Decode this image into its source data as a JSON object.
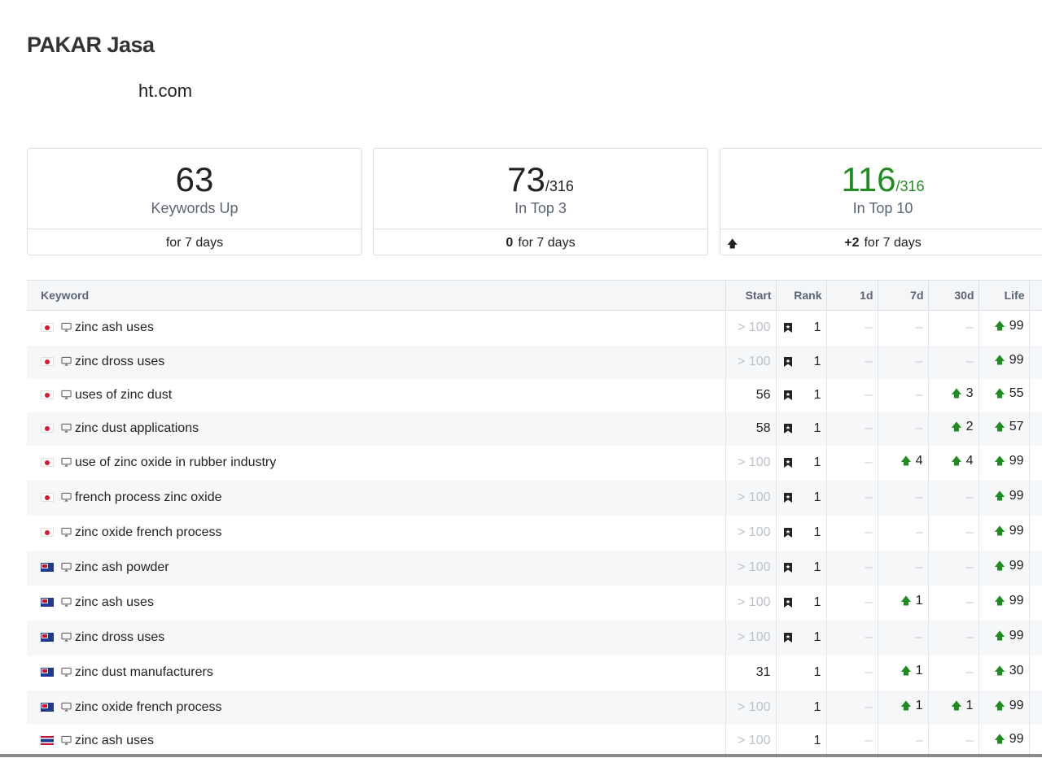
{
  "header": {
    "title": "PAKAR Jasa",
    "domain": "ht.com"
  },
  "cards": [
    {
      "value": "63",
      "label": "Keywords Up",
      "foot_prefix": "",
      "foot_text": "for 7 days"
    },
    {
      "value": "73",
      "denominator": "/316",
      "label": "In Top 3",
      "foot_prefix": "0",
      "foot_text": "for 7 days"
    },
    {
      "value": "116",
      "denominator": "/316",
      "label": "In Top 10",
      "foot_prefix": "+2",
      "foot_text": "for 7 days",
      "accent": "#1e8c1e"
    }
  ],
  "table": {
    "headers": {
      "keyword": "Keyword",
      "start": "Start",
      "rank": "Rank",
      "d1": "1d",
      "d7": "7d",
      "d30": "30d",
      "life": "Life"
    },
    "rows": [
      {
        "flag": "jp",
        "keyword": "zinc ash uses",
        "start": "> 100",
        "rank": "1",
        "pinned": true,
        "d1": "–",
        "d7": "–",
        "d30": "–",
        "life": "99"
      },
      {
        "flag": "jp",
        "keyword": "zinc dross uses",
        "start": "> 100",
        "rank": "1",
        "pinned": true,
        "d1": "–",
        "d7": "–",
        "d30": "–",
        "life": "99"
      },
      {
        "flag": "jp",
        "keyword": "uses of zinc dust",
        "start": "56",
        "rank": "1",
        "pinned": true,
        "d1": "–",
        "d7": "–",
        "d30": "3",
        "life": "55"
      },
      {
        "flag": "jp",
        "keyword": "zinc dust applications",
        "start": "58",
        "rank": "1",
        "pinned": true,
        "d1": "–",
        "d7": "–",
        "d30": "2",
        "life": "57"
      },
      {
        "flag": "jp",
        "keyword": "use of zinc oxide in rubber industry",
        "start": "> 100",
        "rank": "1",
        "pinned": true,
        "d1": "–",
        "d7": "4",
        "d30": "4",
        "life": "99"
      },
      {
        "flag": "jp",
        "keyword": "french process zinc oxide",
        "start": "> 100",
        "rank": "1",
        "pinned": true,
        "d1": "–",
        "d7": "–",
        "d30": "–",
        "life": "99"
      },
      {
        "flag": "jp",
        "keyword": "zinc oxide french process",
        "start": "> 100",
        "rank": "1",
        "pinned": true,
        "d1": "–",
        "d7": "–",
        "d30": "–",
        "life": "99"
      },
      {
        "flag": "au",
        "keyword": "zinc ash powder",
        "start": "> 100",
        "rank": "1",
        "pinned": true,
        "d1": "–",
        "d7": "–",
        "d30": "–",
        "life": "99"
      },
      {
        "flag": "au",
        "keyword": "zinc ash uses",
        "start": "> 100",
        "rank": "1",
        "pinned": true,
        "d1": "–",
        "d7": "1",
        "d30": "–",
        "life": "99"
      },
      {
        "flag": "au",
        "keyword": "zinc dross uses",
        "start": "> 100",
        "rank": "1",
        "pinned": true,
        "d1": "–",
        "d7": "–",
        "d30": "–",
        "life": "99"
      },
      {
        "flag": "au",
        "keyword": "zinc dust manufacturers",
        "start": "31",
        "rank": "1",
        "pinned": false,
        "d1": "–",
        "d7": "1",
        "d30": "–",
        "life": "30"
      },
      {
        "flag": "au",
        "keyword": "zinc oxide french process",
        "start": "> 100",
        "rank": "1",
        "pinned": false,
        "d1": "–",
        "d7": "1",
        "d30": "1",
        "life": "99"
      },
      {
        "flag": "th",
        "keyword": "zinc ash uses",
        "start": "> 100",
        "rank": "1",
        "pinned": false,
        "d1": "–",
        "d7": "–",
        "d30": "–",
        "life": "99"
      }
    ]
  }
}
